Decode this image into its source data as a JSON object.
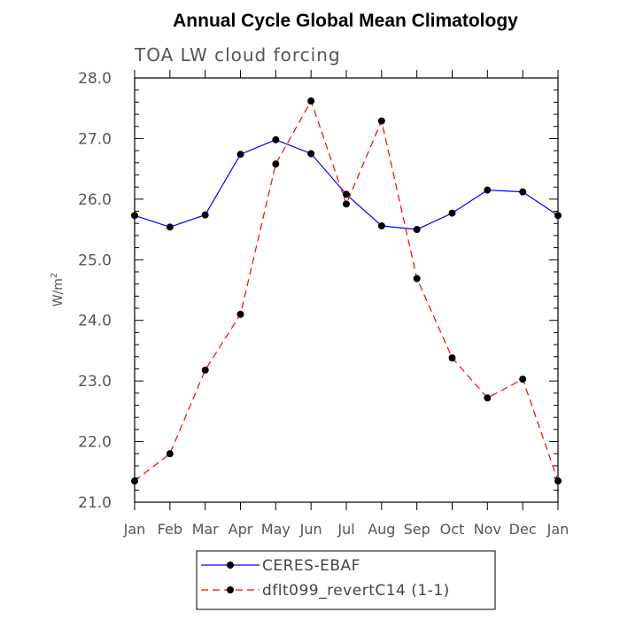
{
  "chart_data": {
    "type": "line",
    "title": "Annual Cycle Global Mean Climatology",
    "subtitle": "TOA LW cloud forcing",
    "xlabel": "",
    "ylabel": "W/m",
    "ylabel_superscript": "2",
    "categories": [
      "Jan",
      "Feb",
      "Mar",
      "Apr",
      "May",
      "Jun",
      "Jul",
      "Aug",
      "Sep",
      "Oct",
      "Nov",
      "Dec",
      "Jan"
    ],
    "ylim": [
      21.0,
      28.0
    ],
    "yticks": [
      21.0,
      22.0,
      23.0,
      24.0,
      25.0,
      26.0,
      27.0,
      28.0
    ],
    "ytick_labels": [
      "21.0",
      "22.0",
      "23.0",
      "24.0",
      "25.0",
      "26.0",
      "27.0",
      "28.0"
    ],
    "series": [
      {
        "name": "CERES-EBAF",
        "color": "#0000ff",
        "dash": "solid",
        "values": [
          25.73,
          25.54,
          25.74,
          26.74,
          26.98,
          26.75,
          26.08,
          25.56,
          25.5,
          25.77,
          26.15,
          26.12,
          25.73
        ]
      },
      {
        "name": "dflt099_revertC14 (1-1)",
        "color": "#ff0000",
        "dash": "dashed",
        "values": [
          21.35,
          21.8,
          23.18,
          24.1,
          26.58,
          27.62,
          25.92,
          27.29,
          24.69,
          23.38,
          22.72,
          23.03,
          21.35
        ]
      }
    ],
    "legend": {
      "placement": "bottom-center"
    }
  }
}
